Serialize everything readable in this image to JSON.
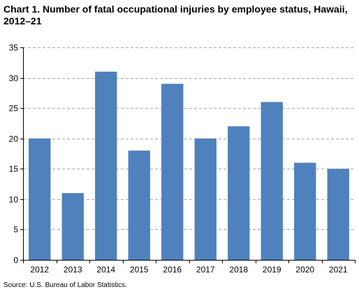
{
  "chart_data": {
    "type": "bar",
    "title": "Chart 1. Number of fatal occupational injuries by employee status, Hawaii, 2012–21",
    "xlabel": "",
    "ylabel": "",
    "categories": [
      "2012",
      "2013",
      "2014",
      "2015",
      "2016",
      "2017",
      "2018",
      "2019",
      "2020",
      "2021"
    ],
    "values": [
      20,
      11,
      31,
      18,
      29,
      20,
      22,
      26,
      16,
      15
    ],
    "ylim": [
      0,
      35
    ],
    "yticks": [
      0,
      5,
      10,
      15,
      20,
      25,
      30,
      35
    ],
    "grid": true,
    "grid_style": "dashed",
    "legend": "none",
    "bar_color": "#4f81bd"
  },
  "source": "Source: U.S. Bureau of Labor Statistics."
}
